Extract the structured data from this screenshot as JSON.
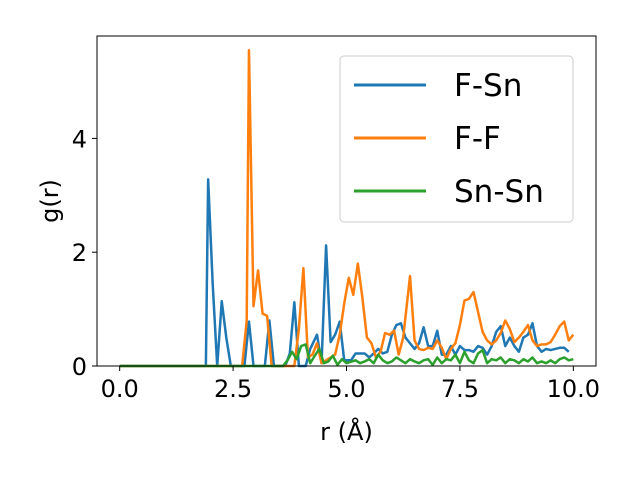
{
  "chart_data": {
    "type": "line",
    "title": "",
    "xlabel": "r (Å)",
    "ylabel": "g(r)",
    "xlim": [
      -0.5,
      10.5
    ],
    "ylim": [
      0,
      5.8
    ],
    "x_ticks": [
      "0.0",
      "2.5",
      "5.0",
      "7.5",
      "10.0"
    ],
    "x_tick_values": [
      0,
      2.5,
      5,
      7.5,
      10
    ],
    "y_ticks": [
      "0",
      "2",
      "4"
    ],
    "y_tick_values": [
      0,
      2,
      4
    ],
    "grid": false,
    "legend_position": "top-right",
    "series": [
      {
        "name": "F-Sn",
        "color": "#1f77b4",
        "points": [
          [
            0,
            0
          ],
          [
            1.8,
            0
          ],
          [
            1.9,
            0
          ],
          [
            1.95,
            3.28
          ],
          [
            2.05,
            1.45
          ],
          [
            2.15,
            0
          ],
          [
            2.25,
            1.14
          ],
          [
            2.35,
            0.5
          ],
          [
            2.45,
            0
          ],
          [
            2.75,
            0
          ],
          [
            2.85,
            0.78
          ],
          [
            2.95,
            0
          ],
          [
            3.2,
            0
          ],
          [
            3.3,
            0.8
          ],
          [
            3.4,
            0
          ],
          [
            3.65,
            0
          ],
          [
            3.75,
            0.22
          ],
          [
            3.85,
            1.12
          ],
          [
            3.95,
            0
          ],
          [
            4.1,
            0
          ],
          [
            4.2,
            0.3
          ],
          [
            4.35,
            0.55
          ],
          [
            4.45,
            0.05
          ],
          [
            4.55,
            2.12
          ],
          [
            4.65,
            0.42
          ],
          [
            4.75,
            0.55
          ],
          [
            4.85,
            0.78
          ],
          [
            4.95,
            0.1
          ],
          [
            5.1,
            0.1
          ],
          [
            5.2,
            0.22
          ],
          [
            5.4,
            0.22
          ],
          [
            5.5,
            0.15
          ],
          [
            5.6,
            0.22
          ],
          [
            5.7,
            0.3
          ],
          [
            5.8,
            0.22
          ],
          [
            5.9,
            0.25
          ],
          [
            6.0,
            0.55
          ],
          [
            6.1,
            0.72
          ],
          [
            6.2,
            0.75
          ],
          [
            6.3,
            0.5
          ],
          [
            6.4,
            0.4
          ],
          [
            6.5,
            0.3
          ],
          [
            6.6,
            0.4
          ],
          [
            6.7,
            0.68
          ],
          [
            6.8,
            0.35
          ],
          [
            6.9,
            0.35
          ],
          [
            7.0,
            0.62
          ],
          [
            7.1,
            0.2
          ],
          [
            7.2,
            0.2
          ],
          [
            7.3,
            0.35
          ],
          [
            7.4,
            0.2
          ],
          [
            7.5,
            0.35
          ],
          [
            7.6,
            0.28
          ],
          [
            7.7,
            0.28
          ],
          [
            7.8,
            0.25
          ],
          [
            7.9,
            0.35
          ],
          [
            8.0,
            0.32
          ],
          [
            8.1,
            0.2
          ],
          [
            8.2,
            0.35
          ],
          [
            8.3,
            0.6
          ],
          [
            8.4,
            0.7
          ],
          [
            8.5,
            0.35
          ],
          [
            8.6,
            0.5
          ],
          [
            8.7,
            0.35
          ],
          [
            8.8,
            0.25
          ],
          [
            8.9,
            0.5
          ],
          [
            9.0,
            0.55
          ],
          [
            9.1,
            0.75
          ],
          [
            9.2,
            0.35
          ],
          [
            9.3,
            0.25
          ],
          [
            9.4,
            0.3
          ],
          [
            9.5,
            0.28
          ],
          [
            9.6,
            0.3
          ],
          [
            9.7,
            0.32
          ],
          [
            9.8,
            0.32
          ],
          [
            9.9,
            0.25
          ]
        ]
      },
      {
        "name": "F-F",
        "color": "#ff7f0e",
        "points": [
          [
            0,
            0
          ],
          [
            2.7,
            0
          ],
          [
            2.8,
            0.8
          ],
          [
            2.85,
            5.55
          ],
          [
            2.95,
            1.05
          ],
          [
            3.05,
            1.68
          ],
          [
            3.15,
            0.92
          ],
          [
            3.25,
            0.88
          ],
          [
            3.35,
            0
          ],
          [
            3.85,
            0
          ],
          [
            3.95,
            0.65
          ],
          [
            4.05,
            1.72
          ],
          [
            4.15,
            0.15
          ],
          [
            4.25,
            0.2
          ],
          [
            4.35,
            0.4
          ],
          [
            4.45,
            0.05
          ],
          [
            4.55,
            0.1
          ],
          [
            4.65,
            0.15
          ],
          [
            4.75,
            0.2
          ],
          [
            4.85,
            0.55
          ],
          [
            4.95,
            1.1
          ],
          [
            5.05,
            1.55
          ],
          [
            5.15,
            1.25
          ],
          [
            5.25,
            1.8
          ],
          [
            5.35,
            1.2
          ],
          [
            5.45,
            0.5
          ],
          [
            5.55,
            0.4
          ],
          [
            5.65,
            0.15
          ],
          [
            5.75,
            0.25
          ],
          [
            5.85,
            0.58
          ],
          [
            5.95,
            0.55
          ],
          [
            6.05,
            0.62
          ],
          [
            6.15,
            0.2
          ],
          [
            6.25,
            0.5
          ],
          [
            6.4,
            1.58
          ],
          [
            6.5,
            0.45
          ],
          [
            6.6,
            0.3
          ],
          [
            6.7,
            0.28
          ],
          [
            6.8,
            0.32
          ],
          [
            6.9,
            0.3
          ],
          [
            7.0,
            0.45
          ],
          [
            7.1,
            0.32
          ],
          [
            7.2,
            0.12
          ],
          [
            7.3,
            0.3
          ],
          [
            7.4,
            0.4
          ],
          [
            7.5,
            0.72
          ],
          [
            7.6,
            1.15
          ],
          [
            7.7,
            1.18
          ],
          [
            7.8,
            1.3
          ],
          [
            7.9,
            0.95
          ],
          [
            8.0,
            0.6
          ],
          [
            8.1,
            0.45
          ],
          [
            8.2,
            0.38
          ],
          [
            8.3,
            0.45
          ],
          [
            8.4,
            0.58
          ],
          [
            8.5,
            0.8
          ],
          [
            8.6,
            0.65
          ],
          [
            8.7,
            0.42
          ],
          [
            8.8,
            0.5
          ],
          [
            8.9,
            0.6
          ],
          [
            9.0,
            0.72
          ],
          [
            9.1,
            0.45
          ],
          [
            9.2,
            0.35
          ],
          [
            9.3,
            0.38
          ],
          [
            9.4,
            0.38
          ],
          [
            9.5,
            0.42
          ],
          [
            9.6,
            0.55
          ],
          [
            9.7,
            0.7
          ],
          [
            9.8,
            0.78
          ],
          [
            9.9,
            0.45
          ],
          [
            10.0,
            0.55
          ]
        ]
      },
      {
        "name": "Sn-Sn",
        "color": "#2ca02c",
        "points": [
          [
            0,
            0
          ],
          [
            3.6,
            0
          ],
          [
            3.7,
            0.1
          ],
          [
            3.8,
            0.25
          ],
          [
            3.9,
            0.12
          ],
          [
            4.0,
            0.35
          ],
          [
            4.1,
            0.38
          ],
          [
            4.2,
            0.05
          ],
          [
            4.3,
            0.18
          ],
          [
            4.4,
            0.3
          ],
          [
            4.5,
            0.05
          ],
          [
            4.6,
            0.08
          ],
          [
            4.7,
            0.18
          ],
          [
            4.8,
            0.02
          ],
          [
            4.9,
            0.12
          ],
          [
            5.0,
            0.05
          ],
          [
            5.2,
            0.1
          ],
          [
            5.3,
            0.05
          ],
          [
            5.4,
            0.08
          ],
          [
            5.5,
            0.12
          ],
          [
            5.6,
            0.05
          ],
          [
            5.7,
            0.2
          ],
          [
            5.8,
            0.1
          ],
          [
            5.9,
            0.05
          ],
          [
            6.0,
            0.08
          ],
          [
            6.1,
            0.15
          ],
          [
            6.2,
            0.1
          ],
          [
            6.3,
            0.05
          ],
          [
            6.4,
            0.12
          ],
          [
            6.5,
            0.08
          ],
          [
            6.6,
            0.05
          ],
          [
            6.7,
            0.1
          ],
          [
            6.8,
            0.12
          ],
          [
            6.9,
            0.02
          ],
          [
            7.0,
            0.15
          ],
          [
            7.1,
            0.05
          ],
          [
            7.2,
            0.12
          ],
          [
            7.3,
            0.1
          ],
          [
            7.4,
            0.2
          ],
          [
            7.5,
            0.05
          ],
          [
            7.6,
            0.25
          ],
          [
            7.7,
            0.1
          ],
          [
            7.8,
            0.05
          ],
          [
            7.9,
            0.22
          ],
          [
            8.0,
            0.28
          ],
          [
            8.1,
            0.05
          ],
          [
            8.2,
            0.12
          ],
          [
            8.3,
            0.1
          ],
          [
            8.4,
            0.15
          ],
          [
            8.5,
            0.05
          ],
          [
            8.6,
            0.12
          ],
          [
            8.7,
            0.1
          ],
          [
            8.8,
            0.05
          ],
          [
            8.9,
            0.12
          ],
          [
            9.0,
            0.08
          ],
          [
            9.1,
            0.15
          ],
          [
            9.2,
            0.05
          ],
          [
            9.3,
            0.08
          ],
          [
            9.4,
            0.05
          ],
          [
            9.5,
            0.1
          ],
          [
            9.6,
            0.05
          ],
          [
            9.7,
            0.12
          ],
          [
            9.8,
            0.15
          ],
          [
            9.9,
            0.1
          ],
          [
            10.0,
            0.12
          ]
        ]
      }
    ]
  }
}
